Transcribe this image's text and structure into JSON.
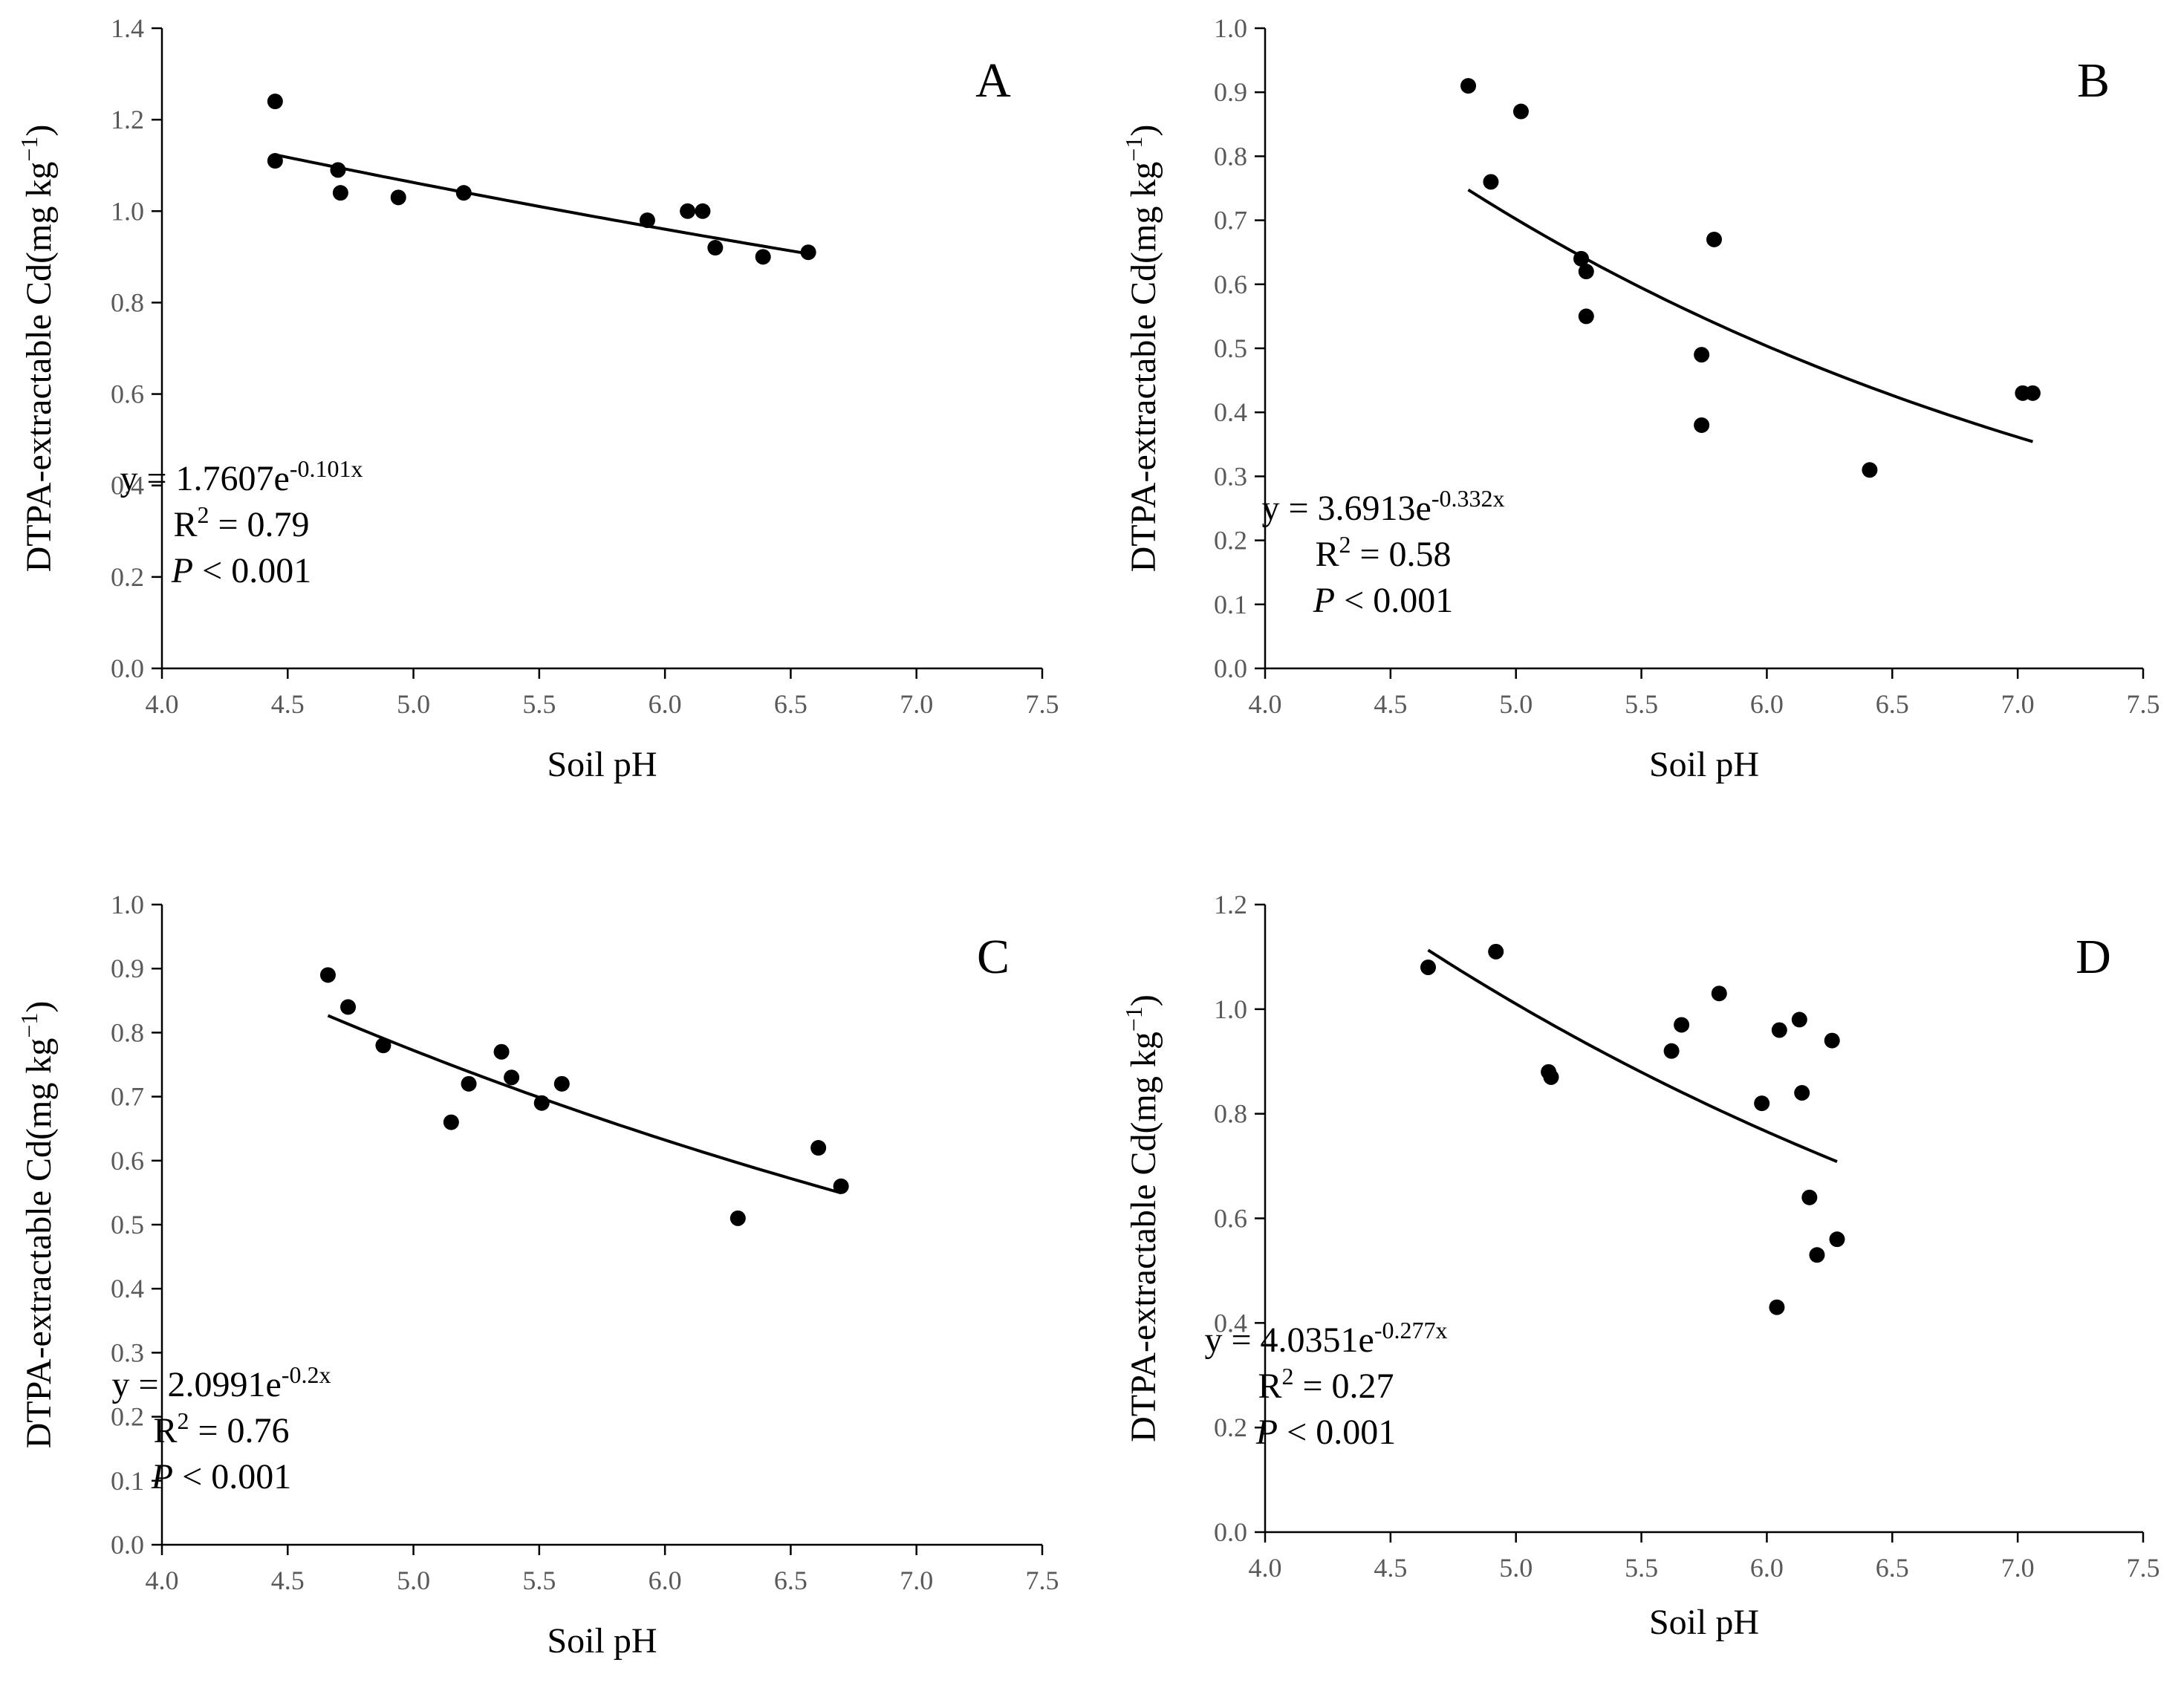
{
  "chart_data": [
    {
      "type": "scatter",
      "panel_label": "A",
      "xlabel": "Soil pH",
      "ylabel": "DTPA-extractable Cd(mg kg",
      "ylabel_sup": "−1",
      "ylabel_close": ")",
      "xlim": [
        4.0,
        7.5
      ],
      "ylim": [
        0.0,
        1.4
      ],
      "xticks": [
        4.0,
        4.5,
        5.0,
        5.5,
        6.0,
        6.5,
        7.0,
        7.5
      ],
      "yticks": [
        0.0,
        0.2,
        0.4,
        0.6,
        0.8,
        1.0,
        1.2,
        1.4
      ],
      "tick_decimals": 1,
      "points": [
        [
          4.45,
          1.24
        ],
        [
          4.45,
          1.11
        ],
        [
          4.7,
          1.09
        ],
        [
          4.71,
          1.04
        ],
        [
          4.94,
          1.03
        ],
        [
          5.2,
          1.04
        ],
        [
          5.93,
          0.98
        ],
        [
          6.09,
          1.0
        ],
        [
          6.15,
          1.0
        ],
        [
          6.2,
          0.92
        ],
        [
          6.39,
          0.9
        ],
        [
          6.57,
          0.91
        ]
      ],
      "fit": {
        "a": 1.7607,
        "b": -0.101,
        "x_range": [
          4.45,
          6.57
        ]
      },
      "equation_prefix": "y = 1.7607e",
      "equation_exp": "-0.101x",
      "r2_prefix": "R",
      "r2_sup": "2",
      "r2_value": " = 0.79",
      "p_symbol": "P",
      "p_value": " < 0.001"
    },
    {
      "type": "scatter",
      "panel_label": "B",
      "xlabel": "Soil pH",
      "ylabel": "DTPA-extractable Cd(mg kg",
      "ylabel_sup": "−1",
      "ylabel_close": ")",
      "xlim": [
        4.0,
        7.5
      ],
      "ylim": [
        0.0,
        1.0
      ],
      "xticks": [
        4.0,
        4.5,
        5.0,
        5.5,
        6.0,
        6.5,
        7.0,
        7.5
      ],
      "yticks": [
        0.0,
        0.1,
        0.2,
        0.3,
        0.4,
        0.5,
        0.6,
        0.7,
        0.8,
        0.9,
        1.0
      ],
      "tick_decimals": 1,
      "points": [
        [
          4.81,
          0.91
        ],
        [
          4.9,
          0.76
        ],
        [
          5.02,
          0.87
        ],
        [
          5.26,
          0.64
        ],
        [
          5.28,
          0.62
        ],
        [
          5.28,
          0.55
        ],
        [
          5.74,
          0.49
        ],
        [
          5.74,
          0.38
        ],
        [
          5.79,
          0.67
        ],
        [
          6.41,
          0.31
        ],
        [
          7.02,
          0.43
        ],
        [
          7.06,
          0.43
        ]
      ],
      "fit": {
        "a": 3.6913,
        "b": -0.332,
        "x_range": [
          4.81,
          7.06
        ]
      },
      "equation_prefix": "y = 3.6913e",
      "equation_exp": "-0.332x",
      "r2_prefix": "R",
      "r2_sup": "2",
      "r2_value": " = 0.58",
      "p_symbol": "P",
      "p_value": " < 0.001"
    },
    {
      "type": "scatter",
      "panel_label": "C",
      "xlabel": "Soil pH",
      "ylabel": "DTPA-extractable Cd(mg kg",
      "ylabel_sup": "−1",
      "ylabel_close": ")",
      "xlim": [
        4.0,
        7.5
      ],
      "ylim": [
        0.0,
        1.0
      ],
      "xticks": [
        4.0,
        4.5,
        5.0,
        5.5,
        6.0,
        6.5,
        7.0,
        7.5
      ],
      "yticks": [
        0.0,
        0.1,
        0.2,
        0.3,
        0.4,
        0.5,
        0.6,
        0.7,
        0.8,
        0.9,
        1.0
      ],
      "tick_decimals": 1,
      "points": [
        [
          4.66,
          0.89
        ],
        [
          4.74,
          0.84
        ],
        [
          4.88,
          0.78
        ],
        [
          5.15,
          0.66
        ],
        [
          5.22,
          0.72
        ],
        [
          5.35,
          0.77
        ],
        [
          5.39,
          0.73
        ],
        [
          5.51,
          0.69
        ],
        [
          5.59,
          0.72
        ],
        [
          6.29,
          0.51
        ],
        [
          6.61,
          0.62
        ],
        [
          6.7,
          0.56
        ]
      ],
      "fit": {
        "a": 2.0991,
        "b": -0.2,
        "x_range": [
          4.66,
          6.7
        ]
      },
      "equation_prefix": "y = 2.0991e",
      "equation_exp": "-0.2x",
      "r2_prefix": "R",
      "r2_sup": "2",
      "r2_value": " = 0.76",
      "p_symbol": "P",
      "p_value": " < 0.001"
    },
    {
      "type": "scatter",
      "panel_label": "D",
      "xlabel": "Soil pH",
      "ylabel": "DTPA-extractable Cd(mg kg",
      "ylabel_sup": "−1",
      "ylabel_close": ")",
      "xlim": [
        4.0,
        7.5
      ],
      "ylim": [
        0.0,
        1.2
      ],
      "xticks": [
        4.0,
        4.5,
        5.0,
        5.5,
        6.0,
        6.5,
        7.0,
        7.5
      ],
      "yticks": [
        0.0,
        0.2,
        0.4,
        0.6,
        0.8,
        1.0,
        1.2
      ],
      "tick_decimals": 1,
      "points": [
        [
          4.65,
          1.08
        ],
        [
          4.92,
          1.11
        ],
        [
          5.13,
          0.88
        ],
        [
          5.14,
          0.87
        ],
        [
          5.62,
          0.92
        ],
        [
          5.66,
          0.97
        ],
        [
          5.81,
          1.03
        ],
        [
          5.98,
          0.82
        ],
        [
          6.05,
          0.96
        ],
        [
          6.04,
          0.43
        ],
        [
          6.13,
          0.98
        ],
        [
          6.14,
          0.84
        ],
        [
          6.17,
          0.64
        ],
        [
          6.2,
          0.53
        ],
        [
          6.26,
          0.94
        ],
        [
          6.28,
          0.56
        ]
      ],
      "fit": {
        "a": 4.0351,
        "b": -0.277,
        "x_range": [
          4.65,
          6.28
        ]
      },
      "equation_prefix": "y = 4.0351e",
      "equation_exp": "-0.277x",
      "r2_prefix": "R",
      "r2_sup": "2",
      "r2_value": " = 0.27",
      "p_symbol": "P",
      "p_value": " < 0.001"
    }
  ],
  "colors": {
    "marker": "#000000",
    "fit_line": "#000000",
    "axis": "#000000",
    "tick_text": "#595959",
    "background": "#ffffff"
  }
}
